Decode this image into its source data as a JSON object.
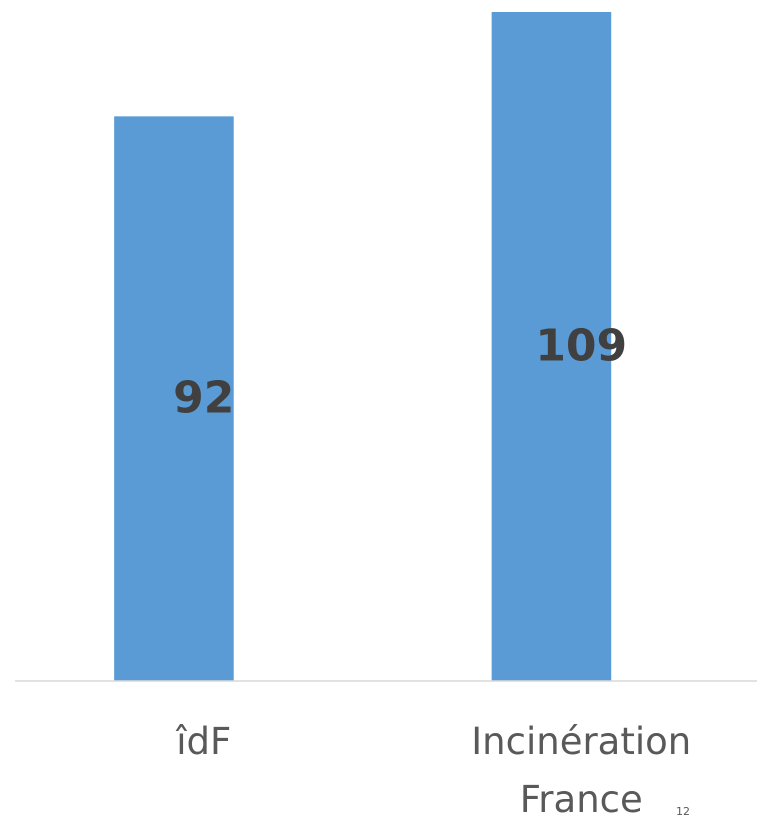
{
  "chart_data": {
    "type": "bar",
    "categories": [
      "îdF",
      "Incinération France"
    ],
    "values": [
      92,
      109
    ],
    "color": "#5b9bd5",
    "page_number": "12"
  }
}
